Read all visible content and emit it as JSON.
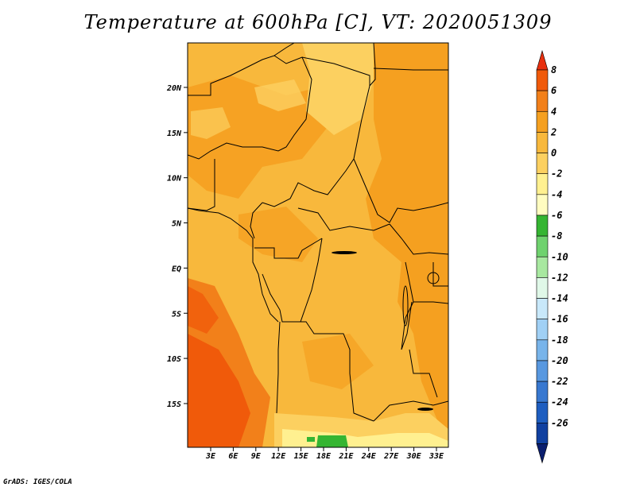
{
  "title": "Temperature at 600hPa [C], VT: 2020051309",
  "credit": "GrADS: IGES/COLA",
  "map": {
    "lat_ticks": [
      "20N",
      "15N",
      "10N",
      "5N",
      "EQ",
      "5S",
      "10S",
      "15S"
    ],
    "lon_ticks": [
      "3E",
      "6E",
      "9E",
      "12E",
      "15E",
      "18E",
      "21E",
      "24E",
      "27E",
      "30E",
      "33E"
    ]
  },
  "colorbar": {
    "labels": [
      "8",
      "6",
      "4",
      "2",
      "0",
      "-2",
      "-4",
      "-6",
      "-8",
      "-10",
      "-12",
      "-14",
      "-16",
      "-18",
      "-20",
      "-22",
      "-24",
      "-26"
    ],
    "colors": [
      "#e8300f",
      "#f05a0a",
      "#f2801a",
      "#f5a020",
      "#f8b83c",
      "#fcd060",
      "#fff090",
      "#fffcc0",
      "#35b532",
      "#6fd26e",
      "#a8e8a0",
      "#e0f8e8",
      "#c8e8fa",
      "#a0d0f5",
      "#78b4ea",
      "#5898e0",
      "#3878d0",
      "#1e5ec0",
      "#1040a0",
      "#0a1e6e"
    ]
  }
}
